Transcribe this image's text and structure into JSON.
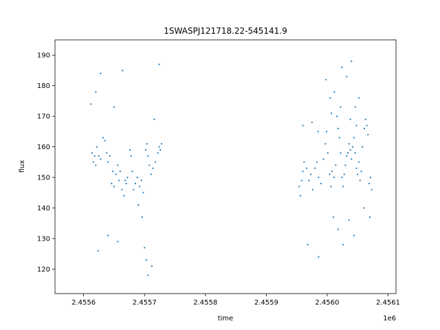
{
  "chart_data": {
    "type": "scatter",
    "title": "1SWASPJ121718.22-545141.9",
    "xlabel": "time",
    "ylabel": "flux",
    "x_offset_label": "1e6",
    "xlim": [
      2455553,
      2456113
    ],
    "ylim": [
      112,
      195
    ],
    "x_ticks": [
      2455600,
      2455700,
      2455800,
      2455900,
      2456000,
      2456100
    ],
    "x_tick_labels": [
      "2.4556",
      "2.4557",
      "2.4558",
      "2.4559",
      "2.4560",
      "2.4561"
    ],
    "y_ticks": [
      120,
      130,
      140,
      150,
      160,
      170,
      180,
      190
    ],
    "y_tick_labels": [
      "120",
      "130",
      "140",
      "150",
      "160",
      "170",
      "180",
      "190"
    ],
    "marker_color": "#1f77b4",
    "grid": false,
    "series": [
      {
        "points": [
          [
            2455614,
            158
          ],
          [
            2455616,
            155
          ],
          [
            2455618,
            157
          ],
          [
            2455620,
            154
          ],
          [
            2455622,
            160
          ],
          [
            2455625,
            157
          ],
          [
            2455628,
            156
          ],
          [
            2455632,
            163
          ],
          [
            2455635,
            162
          ],
          [
            2455638,
            158
          ],
          [
            2455640,
            155
          ],
          [
            2455643,
            157
          ],
          [
            2455646,
            148
          ],
          [
            2455648,
            152
          ],
          [
            2455650,
            147
          ],
          [
            2455653,
            151
          ],
          [
            2455656,
            154
          ],
          [
            2455658,
            149
          ],
          [
            2455660,
            152
          ],
          [
            2455663,
            146
          ],
          [
            2455666,
            144
          ],
          [
            2455668,
            149
          ],
          [
            2455670,
            148
          ],
          [
            2455672,
            150
          ],
          [
            2455676,
            159
          ],
          [
            2455678,
            157
          ],
          [
            2455680,
            152
          ],
          [
            2455682,
            146
          ],
          [
            2455685,
            148
          ],
          [
            2455688,
            150
          ],
          [
            2455692,
            147
          ],
          [
            2455695,
            149
          ],
          [
            2455698,
            145
          ],
          [
            2455702,
            159
          ],
          [
            2455704,
            161
          ],
          [
            2455706,
            157
          ],
          [
            2455708,
            154
          ],
          [
            2455711,
            151
          ],
          [
            2455714,
            153
          ],
          [
            2455718,
            155
          ],
          [
            2455722,
            158
          ],
          [
            2455724,
            160
          ],
          [
            2455726,
            159
          ],
          [
            2455728,
            161
          ],
          [
            2455620,
            178
          ],
          [
            2455628,
            184
          ],
          [
            2455650,
            173
          ],
          [
            2455664,
            185
          ],
          [
            2455690,
            141
          ],
          [
            2455696,
            137
          ],
          [
            2455700,
            127
          ],
          [
            2455703,
            123
          ],
          [
            2455706,
            118
          ],
          [
            2455712,
            121
          ],
          [
            2455716,
            169
          ],
          [
            2455724,
            187
          ],
          [
            2455612,
            174
          ],
          [
            2455624,
            126
          ],
          [
            2455640,
            131
          ],
          [
            2455656,
            129
          ],
          [
            2455954,
            147
          ],
          [
            2455956,
            144
          ],
          [
            2455958,
            149
          ],
          [
            2455960,
            152
          ],
          [
            2455962,
            155
          ],
          [
            2455966,
            153
          ],
          [
            2455970,
            149
          ],
          [
            2455973,
            151
          ],
          [
            2455976,
            146
          ],
          [
            2455980,
            153
          ],
          [
            2455983,
            155
          ],
          [
            2455986,
            150
          ],
          [
            2455990,
            148
          ],
          [
            2455994,
            156
          ],
          [
            2455997,
            161
          ],
          [
            2455999,
            165
          ],
          [
            2456001,
            158
          ],
          [
            2456004,
            151
          ],
          [
            2456006,
            147
          ],
          [
            2456008,
            152
          ],
          [
            2456011,
            150
          ],
          [
            2456014,
            154
          ],
          [
            2456016,
            170
          ],
          [
            2456018,
            166
          ],
          [
            2456020,
            163
          ],
          [
            2456022,
            158
          ],
          [
            2456024,
            150
          ],
          [
            2456026,
            147
          ],
          [
            2456028,
            151
          ],
          [
            2456030,
            154
          ],
          [
            2456032,
            157
          ],
          [
            2456034,
            158
          ],
          [
            2456036,
            161
          ],
          [
            2456038,
            159
          ],
          [
            2456040,
            156
          ],
          [
            2456042,
            160
          ],
          [
            2456044,
            163
          ],
          [
            2456046,
            158
          ],
          [
            2456048,
            153
          ],
          [
            2456050,
            151
          ],
          [
            2456052,
            155
          ],
          [
            2456054,
            149
          ],
          [
            2456056,
            152
          ],
          [
            2456058,
            160
          ],
          [
            2456061,
            166
          ],
          [
            2456063,
            169
          ],
          [
            2456065,
            167
          ],
          [
            2456067,
            164
          ],
          [
            2456069,
            148
          ],
          [
            2456071,
            150
          ],
          [
            2456073,
            146
          ],
          [
            2455960,
            167
          ],
          [
            2455975,
            168
          ],
          [
            2455985,
            165
          ],
          [
            2455998,
            182
          ],
          [
            2456005,
            176
          ],
          [
            2456012,
            178
          ],
          [
            2456024,
            186
          ],
          [
            2456032,
            183
          ],
          [
            2456040,
            188
          ],
          [
            2456046,
            173
          ],
          [
            2456052,
            176
          ],
          [
            2456018,
            133
          ],
          [
            2456026,
            128
          ],
          [
            2456036,
            136
          ],
          [
            2456044,
            131
          ],
          [
            2456010,
            137
          ],
          [
            2455986,
            124
          ],
          [
            2455968,
            128
          ],
          [
            2456070,
            137
          ],
          [
            2456060,
            140
          ],
          [
            2456007,
            171
          ],
          [
            2456022,
            173
          ],
          [
            2456038,
            169
          ],
          [
            2456048,
            167
          ]
        ]
      }
    ]
  }
}
